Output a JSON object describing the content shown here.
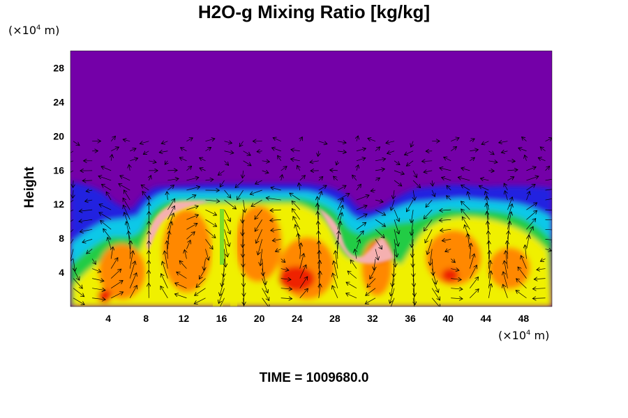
{
  "chart_data": {
    "type": "heatmap",
    "title": "H2O-g Mixing Ratio [kg/kg]",
    "ylabel": "Height",
    "y_unit": {
      "prefix": "(×10",
      "exp": "4",
      "suffix": " m)"
    },
    "x_unit": {
      "prefix": "(×10",
      "exp": "4",
      "suffix": " m)"
    },
    "x_ticks": [
      4,
      8,
      12,
      16,
      20,
      24,
      28,
      32,
      36,
      40,
      44,
      48
    ],
    "y_ticks": [
      4,
      8,
      12,
      16,
      20,
      24,
      28
    ],
    "xlim": [
      0,
      51
    ],
    "ylim": [
      0,
      30
    ],
    "time_label": "TIME = 1009680.0",
    "overlay": "wind vectors",
    "colors": {
      "background_field": "#7400a8",
      "low_band": "#2020e0",
      "mid": "#22cc44",
      "moist": "#f0f000",
      "high": "#ff8800",
      "peak": "#ee2200",
      "max": "#f5b0b0"
    }
  }
}
